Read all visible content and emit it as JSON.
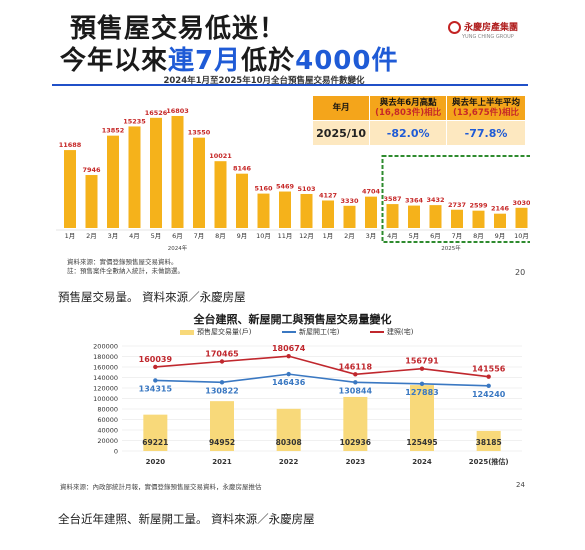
{
  "slide1": {
    "title_line1": "預售屋交易低迷！",
    "title_line2_prefix": "今年以來",
    "title_line2_highlight": "連7月",
    "title_line2_middle": "低於",
    "title_line2_number": "4000件",
    "logo_text": "永慶房產集團",
    "logo_sub": "YUNG CHING GROUP",
    "chart_title": "2024年1月至2025年10月全台預售屋交易件數變化",
    "table": {
      "col1": "年月",
      "col2_line1": "與去年6月高點",
      "col2_line2": "(16,803件)相比",
      "col3_line1": "與去年上半年平均",
      "col3_line2": "(13,675件)相比",
      "row_label": "2025/10",
      "row_v1": "-82.0%",
      "row_v2": "-77.8%"
    },
    "source_line1": "資料來源：實價登錄預售屋交易資料。",
    "source_line2": "註：預售案件全數納入統計，未做篩選。",
    "page_number": "20",
    "colors": {
      "bar": "#f5b21b",
      "label": "#c62828",
      "highlight_box": "#2e8b2e",
      "accent_blue": "#1f5bd6"
    }
  },
  "caption1": "預售屋交易量。 資料來源／永慶房屋",
  "slide2": {
    "title": "全台建照、新屋開工與預售屋交易量變化",
    "legend_presale": "預售屋交易量(戶)",
    "legend_starts": "新屋開工(宅)",
    "legend_permits": "建照(宅)",
    "source": "資料來源：內政部統計月報，實價登錄預售屋交易資料，永慶房屋推估",
    "page_number": "24",
    "colors": {
      "bar": "#f8d97a",
      "permits": "#c0272d",
      "starts": "#3a78c2"
    }
  },
  "caption2": "全台近年建照、新屋開工量。 資料來源／永慶房屋",
  "chart_data": [
    {
      "type": "bar",
      "title": "2024年1月至2025年10月全台預售屋交易件數變化",
      "categories": [
        "1月",
        "2月",
        "3月",
        "4月",
        "5月",
        "6月",
        "7月",
        "8月",
        "9月",
        "10月",
        "11月",
        "12月",
        "1月",
        "2月",
        "3月",
        "4月",
        "5月",
        "6月",
        "7月",
        "8月",
        "9月",
        "10月"
      ],
      "year_labels": [
        "2024年",
        "2025年"
      ],
      "values": [
        11688,
        7946,
        13852,
        15235,
        16526,
        16803,
        13550,
        10021,
        8146,
        5160,
        5469,
        5103,
        4127,
        3330,
        4704,
        3587,
        3364,
        3432,
        2737,
        2599,
        2146,
        3030
      ],
      "ylim": [
        0,
        18000
      ],
      "highlight_range": [
        15,
        21
      ],
      "grid": false
    },
    {
      "type": "bar+line",
      "title": "全台建照、新屋開工與預售屋交易量變化",
      "categories": [
        "2020",
        "2021",
        "2022",
        "2023",
        "2024",
        "2025(推估)"
      ],
      "series": [
        {
          "name": "預售屋交易量(戶)",
          "type": "bar",
          "values": [
            69221,
            94952,
            80308,
            102936,
            125495,
            38185
          ]
        },
        {
          "name": "新屋開工(宅)",
          "type": "line",
          "values": [
            134315,
            130822,
            146436,
            130844,
            127883,
            124240
          ]
        },
        {
          "name": "建照(宅)",
          "type": "line",
          "values": [
            160039,
            170465,
            180674,
            146118,
            156791,
            141556
          ]
        }
      ],
      "yticks": [
        "0",
        "20000",
        "40000",
        "60000",
        "80000",
        "100000",
        "120000",
        "140000",
        "160000",
        "180000",
        "200000"
      ],
      "ylim": [
        0,
        200000
      ],
      "grid": true,
      "legend": "top"
    }
  ]
}
